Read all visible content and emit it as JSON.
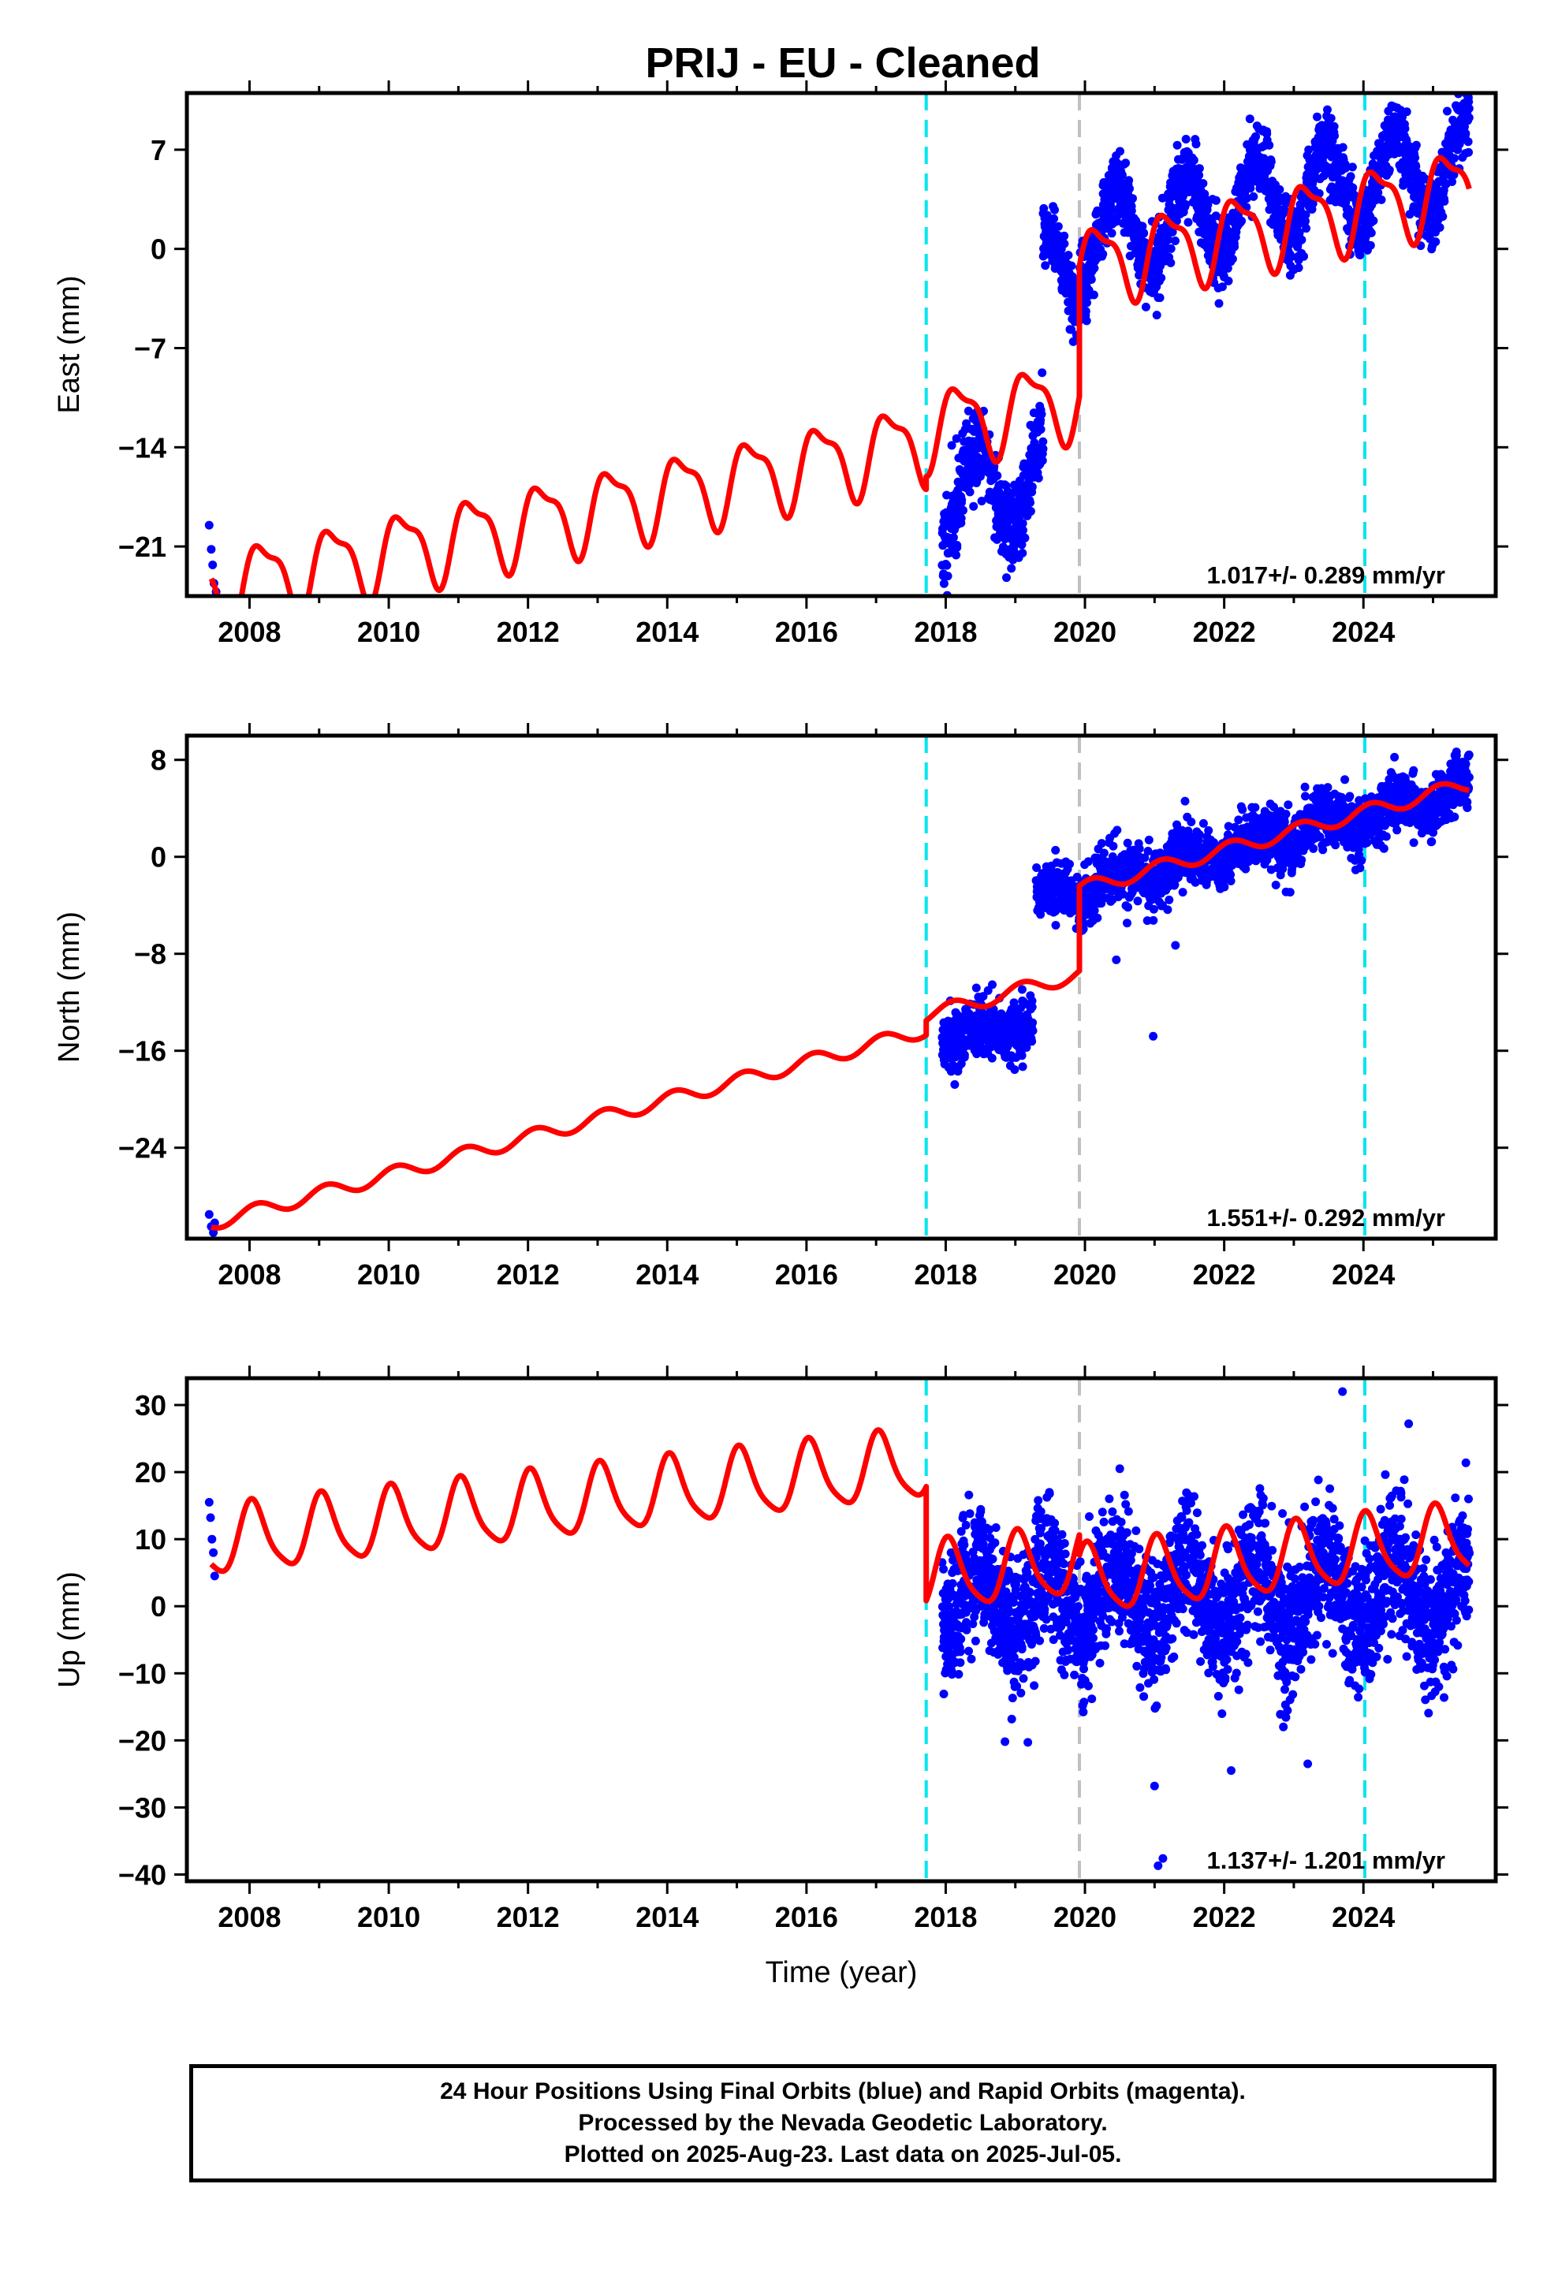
{
  "title": "PRIJ  - EU - Cleaned",
  "footer": {
    "lines": [
      "24 Hour Positions Using Final Orbits (blue) and Rapid Orbits (magenta).",
      "Processed by the Nevada Geodetic Laboratory.",
      "Plotted on 2025-Aug-23. Last data on 2025-Jul-05."
    ]
  },
  "colors": {
    "data": "#0000ff",
    "model": "#ff0000",
    "equipment_change": "#00e5ee",
    "earthquake": "#c0c0c0",
    "frame": "#000000"
  },
  "chart_data": [
    {
      "type": "scatter",
      "ylabel": "East (mm)",
      "xlabel": "",
      "xlim": [
        2007.1,
        2025.9
      ],
      "ylim": [
        -24.5,
        11
      ],
      "xticks": [
        "2008",
        "2010",
        "2012",
        "2014",
        "2016",
        "2018",
        "2020",
        "2022",
        "2024"
      ],
      "yticks": [
        "7",
        "0",
        "−7",
        "−14",
        "−21"
      ],
      "ytick_values": [
        7,
        0,
        -7,
        -14,
        -21
      ],
      "velocity_label": "1.017+/- 0.289 mm/yr",
      "vlines": [
        {
          "x": 2017.72,
          "kind": "equipment"
        },
        {
          "x": 2019.92,
          "kind": "earthquake"
        },
        {
          "x": 2024.02,
          "kind": "equipment"
        }
      ],
      "model": {
        "rate": 1.017,
        "intercept_year": 2007.45,
        "intercept": -24.0,
        "annual_amp": 2.6,
        "annual_phase": 0.2,
        "semi_amp": 0.9,
        "semi_phase": 0.0,
        "offsets": [
          {
            "x": 2017.72,
            "dy": 0.9
          },
          {
            "x": 2019.92,
            "dy": 9.2
          }
        ]
      },
      "series": [
        {
          "x_start": 2017.95,
          "x_end": 2019.4,
          "base": -17.6,
          "rate": 1.0,
          "amp": 3.2,
          "noise": 1.6,
          "n": 420,
          "seed": 11
        },
        {
          "x_start": 2019.4,
          "x_end": 2019.92,
          "base": -2.0,
          "rate": 1.0,
          "amp": 3.0,
          "noise": 1.2,
          "n": 160,
          "seed": 12
        },
        {
          "x_start": 2019.92,
          "x_end": 2025.52,
          "base": 0.6,
          "rate": 1.0,
          "amp": 3.0,
          "noise": 1.3,
          "n": 1700,
          "seed": 13
        },
        {
          "points": [
            [
              2007.42,
              -19.5
            ],
            [
              2007.45,
              -21.2
            ],
            [
              2007.47,
              -22.3
            ],
            [
              2007.49,
              -23.6
            ],
            [
              2007.52,
              -24.2
            ]
          ]
        }
      ]
    },
    {
      "type": "scatter",
      "ylabel": "North (mm)",
      "xlabel": "",
      "xlim": [
        2007.1,
        2025.9
      ],
      "ylim": [
        -31.5,
        10
      ],
      "xticks": [
        "2008",
        "2010",
        "2012",
        "2014",
        "2016",
        "2018",
        "2020",
        "2022",
        "2024"
      ],
      "yticks": [
        "8",
        "0",
        "−8",
        "−16",
        "−24"
      ],
      "ytick_values": [
        8,
        0,
        -8,
        -16,
        -24
      ],
      "velocity_label": "1.551+/- 0.292 mm/yr",
      "vlines": [
        {
          "x": 2017.72,
          "kind": "equipment"
        },
        {
          "x": 2019.92,
          "kind": "earthquake"
        },
        {
          "x": 2024.02,
          "kind": "equipment"
        }
      ],
      "model": {
        "rate": 1.551,
        "intercept_year": 2007.45,
        "intercept": -30.2,
        "annual_amp": 0.6,
        "annual_phase": 0.1,
        "semi_amp": 0.0,
        "semi_phase": 0.0,
        "offsets": [
          {
            "x": 2017.72,
            "dy": 1.2
          },
          {
            "x": 2019.92,
            "dy": 7.0
          }
        ]
      },
      "series": [
        {
          "x_start": 2017.95,
          "x_end": 2019.25,
          "base": -15.0,
          "rate": 1.0,
          "amp": 0.6,
          "noise": 1.2,
          "n": 380,
          "seed": 21
        },
        {
          "x_start": 2019.3,
          "x_end": 2019.92,
          "base": -3.5,
          "rate": 1.5,
          "amp": 0.6,
          "noise": 1.0,
          "n": 170,
          "seed": 22
        },
        {
          "x_start": 2019.92,
          "x_end": 2025.52,
          "base": -2.6,
          "rate": 1.45,
          "amp": 0.9,
          "noise": 1.2,
          "n": 1700,
          "seed": 23
        },
        {
          "points": [
            [
              2007.42,
              -29.5
            ],
            [
              2007.45,
              -30.5
            ],
            [
              2007.48,
              -31.0
            ],
            [
              2007.5,
              -30.2
            ],
            [
              2020.45,
              -8.5
            ],
            [
              2020.98,
              -14.8
            ],
            [
              2021.3,
              -7.3
            ]
          ]
        }
      ]
    },
    {
      "type": "scatter",
      "ylabel": "Up (mm)",
      "xlabel": "Time (year)",
      "xlim": [
        2007.1,
        2025.9
      ],
      "ylim": [
        -41,
        34
      ],
      "xticks": [
        "2008",
        "2010",
        "2012",
        "2014",
        "2016",
        "2018",
        "2020",
        "2022",
        "2024"
      ],
      "yticks": [
        "30",
        "20",
        "10",
        "0",
        "−10",
        "−20",
        "−30",
        "−40"
      ],
      "ytick_values": [
        30,
        20,
        10,
        0,
        -10,
        -20,
        -30,
        -40
      ],
      "velocity_label": "1.137+/- 1.201 mm/yr",
      "vlines": [
        {
          "x": 2017.72,
          "kind": "equipment"
        },
        {
          "x": 2019.92,
          "kind": "earthquake"
        },
        {
          "x": 2024.02,
          "kind": "equipment"
        }
      ],
      "model": {
        "rate": 1.137,
        "intercept_year": 2007.45,
        "intercept": 9.5,
        "annual_amp": 5.0,
        "annual_phase": 0.05,
        "semi_amp": 1.0,
        "semi_phase": 0.0,
        "offsets": [
          {
            "x": 2017.72,
            "dy": -17.0
          },
          {
            "x": 2019.92,
            "dy": -3.0
          }
        ]
      },
      "series": [
        {
          "x_start": 2017.95,
          "x_end": 2025.52,
          "base": 1.0,
          "rate": 0.1,
          "amp": 5.0,
          "noise": 5.0,
          "n": 2600,
          "seed": 31
        },
        {
          "points": [
            [
              2007.42,
              15.5
            ],
            [
              2007.44,
              13.2
            ],
            [
              2007.46,
              10.0
            ],
            [
              2007.48,
              8.0
            ],
            [
              2007.5,
              4.5
            ],
            [
              2019.18,
              -20.3
            ],
            [
              2021.0,
              -26.8
            ],
            [
              2021.05,
              -38.7
            ],
            [
              2021.12,
              -37.6
            ],
            [
              2022.1,
              -24.5
            ],
            [
              2023.2,
              -23.5
            ],
            [
              2023.7,
              32.0
            ],
            [
              2024.65,
              27.2
            ],
            [
              2022.85,
              -18.0
            ],
            [
              2020.5,
              20.5
            ]
          ]
        }
      ]
    }
  ]
}
